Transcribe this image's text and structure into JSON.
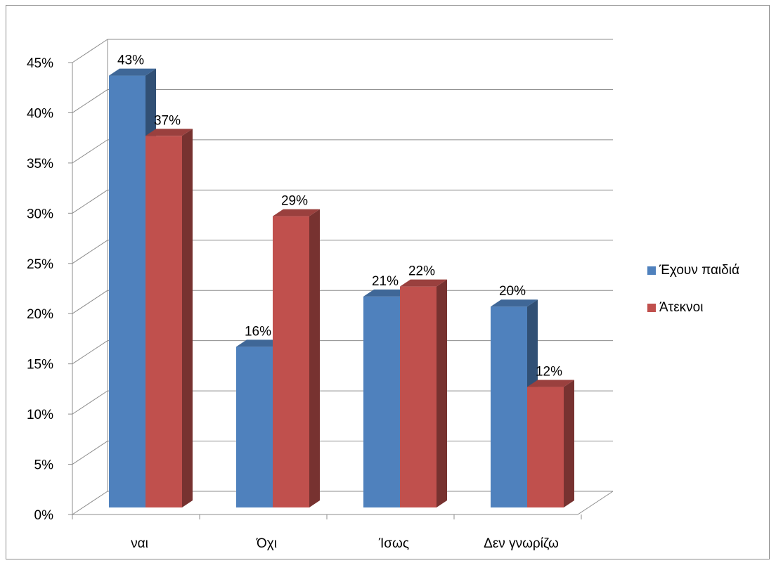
{
  "chart_data": {
    "type": "bar",
    "categories": [
      "ναι",
      "Όχι",
      "Ίσως",
      "Δεν γνωρίζω"
    ],
    "series": [
      {
        "name": "Έχουν παιδιά",
        "values": [
          43,
          16,
          21,
          20
        ],
        "labels": [
          "43%",
          "16%",
          "21%",
          "20%"
        ],
        "color": "#4f81bd"
      },
      {
        "name": "Άτεκνοι",
        "values": [
          37,
          29,
          22,
          12
        ],
        "labels": [
          "37%",
          "29%",
          "22%",
          "12%"
        ],
        "color": "#c0504d"
      }
    ],
    "yticks": [
      "0%",
      "5%",
      "10%",
      "15%",
      "20%",
      "25%",
      "30%",
      "35%",
      "40%",
      "45%"
    ],
    "ylim": [
      0,
      45
    ],
    "title": "",
    "xlabel": "",
    "ylabel": "",
    "grid": true,
    "legend_position": "right",
    "style": "3d-clustered-column"
  }
}
